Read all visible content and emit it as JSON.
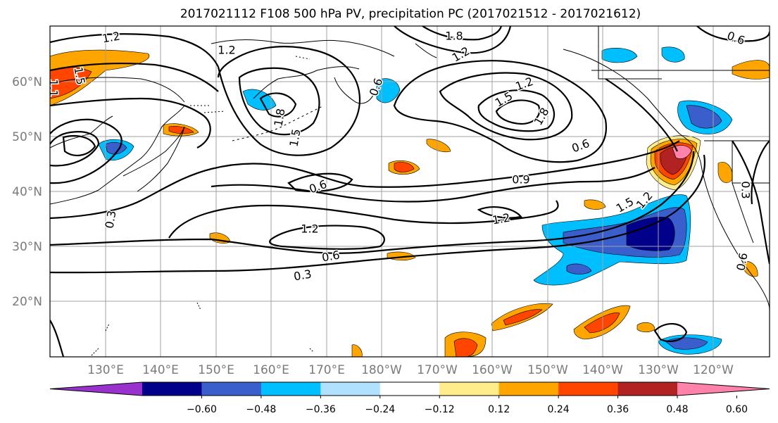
{
  "title": "2017021112 F108 500 hPa PV, precipitation PC (2017021512 - 2017021612)",
  "map": {
    "lat_labels": [
      "60°N",
      "50°N",
      "40°N",
      "30°N",
      "20°N"
    ],
    "lon_labels": [
      "130°E",
      "140°E",
      "150°E",
      "160°E",
      "170°E",
      "180°W",
      "170°W",
      "160°W",
      "150°W",
      "140°W",
      "130°W",
      "120°W"
    ],
    "contour_labels": [
      "1.2",
      "1.2",
      "1.8",
      "1.2",
      "0.6",
      "0.6",
      "1.5",
      "1.8",
      "1.2",
      "1.5",
      "1.5",
      "0.6",
      "0.9",
      "1.2",
      "1.2",
      "0.6",
      "0.3",
      "0.6",
      "1.5",
      "1.2",
      "0.3",
      "0.3",
      "0.6",
      "1.8",
      "1.1"
    ]
  },
  "colorbar": {
    "colors": [
      "#9932cc",
      "#00008b",
      "#3a5fcd",
      "#00bfff",
      "#b0e2ff",
      "#ffffff",
      "#ffec8b",
      "#ffa500",
      "#ff4500",
      "#b22222",
      "#ff82ab"
    ],
    "tick_labels": [
      "−0.60",
      "−0.48",
      "−0.36",
      "−0.24",
      "−0.12",
      "0.12",
      "0.24",
      "0.36",
      "0.48",
      "0.60"
    ]
  },
  "precip_colors": {
    "neg_strong": "#00008b",
    "neg_med": "#3a5fcd",
    "neg_weak": "#00bfff",
    "neg_faint": "#b0e2ff",
    "pos_faint": "#ffec8b",
    "pos_weak": "#ffa500",
    "pos_med": "#ff4500",
    "pos_strong": "#b22222",
    "pos_max": "#ff82ab"
  }
}
